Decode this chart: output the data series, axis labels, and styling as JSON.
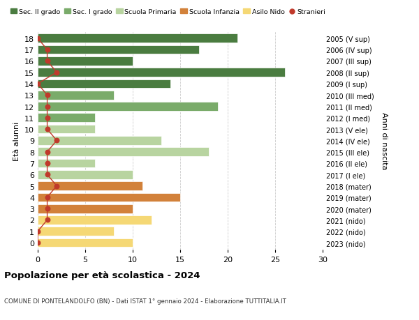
{
  "ages": [
    18,
    17,
    16,
    15,
    14,
    13,
    12,
    11,
    10,
    9,
    8,
    7,
    6,
    5,
    4,
    3,
    2,
    1,
    0
  ],
  "right_labels": [
    "2005 (V sup)",
    "2006 (IV sup)",
    "2007 (III sup)",
    "2008 (II sup)",
    "2009 (I sup)",
    "2010 (III med)",
    "2011 (II med)",
    "2012 (I med)",
    "2013 (V ele)",
    "2014 (IV ele)",
    "2015 (III ele)",
    "2016 (II ele)",
    "2017 (I ele)",
    "2018 (mater)",
    "2019 (mater)",
    "2020 (mater)",
    "2021 (nido)",
    "2022 (nido)",
    "2023 (nido)"
  ],
  "bar_values": [
    21,
    17,
    10,
    26,
    14,
    8,
    19,
    6,
    6,
    13,
    18,
    6,
    10,
    11,
    15,
    10,
    12,
    8,
    10
  ],
  "bar_colors": [
    "#4a7c40",
    "#4a7c40",
    "#4a7c40",
    "#4a7c40",
    "#4a7c40",
    "#7aab6a",
    "#7aab6a",
    "#7aab6a",
    "#b8d4a0",
    "#b8d4a0",
    "#b8d4a0",
    "#b8d4a0",
    "#b8d4a0",
    "#d2813a",
    "#d2813a",
    "#d2813a",
    "#f5d875",
    "#f5d875",
    "#f5d875"
  ],
  "stranieri_values": [
    0,
    1,
    1,
    2,
    0,
    1,
    1,
    1,
    1,
    2,
    1,
    1,
    1,
    2,
    1,
    1,
    1,
    0,
    0
  ],
  "legend_labels": [
    "Sec. II grado",
    "Sec. I grado",
    "Scuola Primaria",
    "Scuola Infanzia",
    "Asilo Nido",
    "Stranieri"
  ],
  "legend_colors": [
    "#4a7c40",
    "#7aab6a",
    "#b8d4a0",
    "#d2813a",
    "#f5d875",
    "#c0392b"
  ],
  "ylabel_left": "Età alunni",
  "ylabel_right": "Anni di nascita",
  "title": "Popolazione per età scolastica - 2024",
  "subtitle": "COMUNE DI PONTELANDOLFO (BN) - Dati ISTAT 1° gennaio 2024 - Elaborazione TUTTITALIA.IT",
  "xlim": [
    0,
    30
  ],
  "background_color": "#ffffff",
  "grid_color": "#cccccc",
  "bar_height": 0.78
}
